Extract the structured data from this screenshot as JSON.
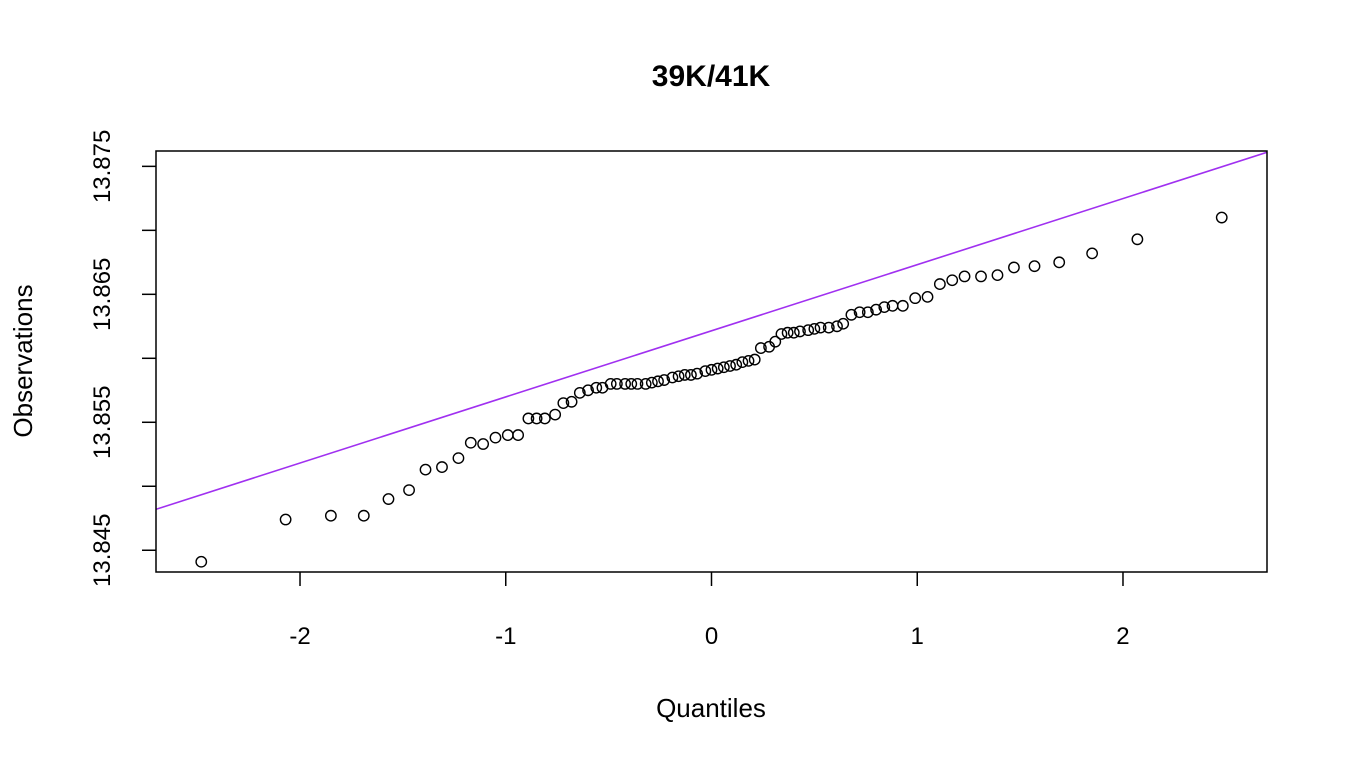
{
  "chart_data": {
    "type": "scatter",
    "title": "39K/41K",
    "xlabel": "Quantiles",
    "ylabel": "Observations",
    "xlim": [
      -2.7,
      2.7
    ],
    "ylim": [
      13.8433,
      13.8762
    ],
    "x_ticks": [
      -2,
      -1,
      0,
      1,
      2
    ],
    "x_tick_labels": [
      "-2",
      "-1",
      "0",
      "1",
      "2"
    ],
    "y_ticks": [
      13.845,
      13.85,
      13.855,
      13.86,
      13.865,
      13.87,
      13.875
    ],
    "y_tick_labels": [
      "13.845",
      "13.855",
      "13.865",
      "13.875"
    ],
    "y_tick_labeled": [
      13.845,
      13.855,
      13.865,
      13.875
    ],
    "grid": false,
    "legend": null,
    "colors": {
      "points": "#000000",
      "reference_line": "#a030f0",
      "frame": "#000000"
    },
    "reference_line": {
      "x": [
        -2.7,
        2.7
      ],
      "y": [
        13.8482,
        13.8761
      ]
    },
    "series": [
      {
        "points": [
          [
            -2.48,
            13.8441
          ],
          [
            -2.07,
            13.8474
          ],
          [
            -1.85,
            13.8477
          ],
          [
            -1.69,
            13.8477
          ],
          [
            -1.57,
            13.849
          ],
          [
            -1.47,
            13.8497
          ],
          [
            -1.39,
            13.8513
          ],
          [
            -1.31,
            13.8515
          ],
          [
            -1.23,
            13.8522
          ],
          [
            -1.17,
            13.8534
          ],
          [
            -1.11,
            13.8533
          ],
          [
            -1.05,
            13.8538
          ],
          [
            -0.99,
            13.854
          ],
          [
            -0.94,
            13.854
          ],
          [
            -0.89,
            13.8553
          ],
          [
            -0.85,
            13.8553
          ],
          [
            -0.81,
            13.8553
          ],
          [
            -0.76,
            13.8556
          ],
          [
            -0.72,
            13.8565
          ],
          [
            -0.68,
            13.8566
          ],
          [
            -0.64,
            13.8573
          ],
          [
            -0.6,
            13.8575
          ],
          [
            -0.56,
            13.8577
          ],
          [
            -0.53,
            13.8577
          ],
          [
            -0.49,
            13.858
          ],
          [
            -0.46,
            13.858
          ],
          [
            -0.42,
            13.858
          ],
          [
            -0.39,
            13.858
          ],
          [
            -0.36,
            13.858
          ],
          [
            -0.32,
            13.858
          ],
          [
            -0.29,
            13.8581
          ],
          [
            -0.26,
            13.8582
          ],
          [
            -0.23,
            13.8583
          ],
          [
            -0.19,
            13.8585
          ],
          [
            -0.16,
            13.8586
          ],
          [
            -0.13,
            13.8587
          ],
          [
            -0.1,
            13.8587
          ],
          [
            -0.07,
            13.8588
          ],
          [
            -0.03,
            13.859
          ],
          [
            0.0,
            13.8591
          ],
          [
            0.03,
            13.8592
          ],
          [
            0.06,
            13.8593
          ],
          [
            0.09,
            13.8594
          ],
          [
            0.12,
            13.8595
          ],
          [
            0.15,
            13.8597
          ],
          [
            0.18,
            13.8598
          ],
          [
            0.21,
            13.8599
          ],
          [
            0.24,
            13.8608
          ],
          [
            0.28,
            13.8609
          ],
          [
            0.31,
            13.8613
          ],
          [
            0.34,
            13.8619
          ],
          [
            0.37,
            13.862
          ],
          [
            0.4,
            13.862
          ],
          [
            0.43,
            13.8621
          ],
          [
            0.47,
            13.8622
          ],
          [
            0.5,
            13.8623
          ],
          [
            0.53,
            13.8624
          ],
          [
            0.57,
            13.8624
          ],
          [
            0.61,
            13.8625
          ],
          [
            0.64,
            13.8627
          ],
          [
            0.68,
            13.8634
          ],
          [
            0.72,
            13.8636
          ],
          [
            0.76,
            13.8636
          ],
          [
            0.8,
            13.8638
          ],
          [
            0.84,
            13.864
          ],
          [
            0.88,
            13.8641
          ],
          [
            0.93,
            13.8641
          ],
          [
            0.99,
            13.8647
          ],
          [
            1.05,
            13.8648
          ],
          [
            1.11,
            13.8658
          ],
          [
            1.17,
            13.8661
          ],
          [
            1.23,
            13.8664
          ],
          [
            1.31,
            13.8664
          ],
          [
            1.39,
            13.8665
          ],
          [
            1.47,
            13.8671
          ],
          [
            1.57,
            13.8672
          ],
          [
            1.69,
            13.8675
          ],
          [
            1.85,
            13.8682
          ],
          [
            2.07,
            13.8693
          ],
          [
            2.48,
            13.871
          ]
        ]
      }
    ]
  }
}
